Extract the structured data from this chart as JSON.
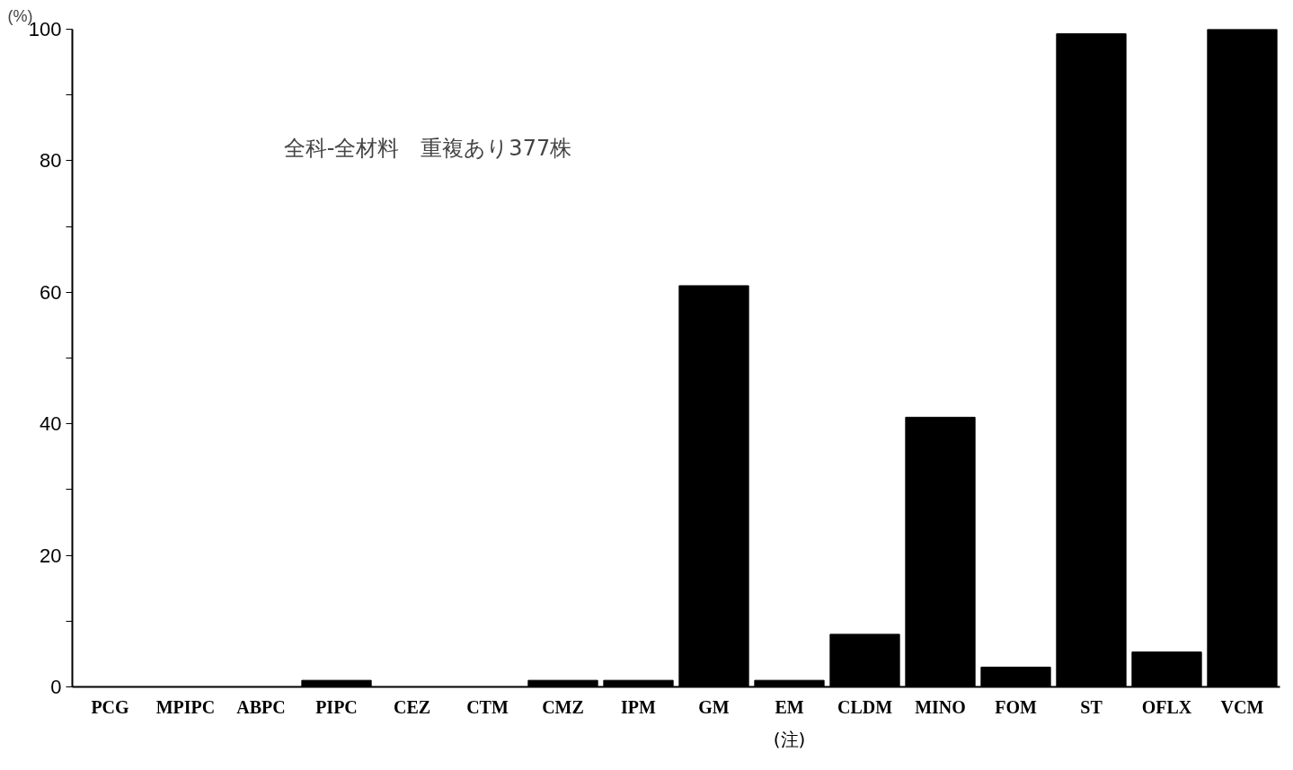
{
  "chart_data": {
    "type": "bar",
    "ylabel": "(%)",
    "categories": [
      "PCG",
      "MPIPC",
      "ABPC",
      "PIPC",
      "CEZ",
      "CTM",
      "CMZ",
      "IPM",
      "GM",
      "EM",
      "CLDM",
      "MINO",
      "FOM",
      "ST",
      "OFLX",
      "VCM"
    ],
    "values": [
      0,
      0,
      0,
      1,
      0,
      0,
      1,
      1,
      61,
      1,
      8,
      41,
      3,
      99.3,
      5.3,
      100
    ],
    "color": "#000000",
    "ylim": [
      0,
      100
    ],
    "yticks": [
      0,
      {
        "value": 10,
        "label": null
      },
      20,
      {
        "value": 30,
        "label": null
      },
      40,
      {
        "value": 50,
        "label": null
      },
      60,
      {
        "value": 70,
        "label": null
      },
      80,
      {
        "value": 90,
        "label": null
      },
      100
    ],
    "annotations": [
      "全科-全材料　重複あり377株",
      "(注)"
    ],
    "grid": false
  }
}
